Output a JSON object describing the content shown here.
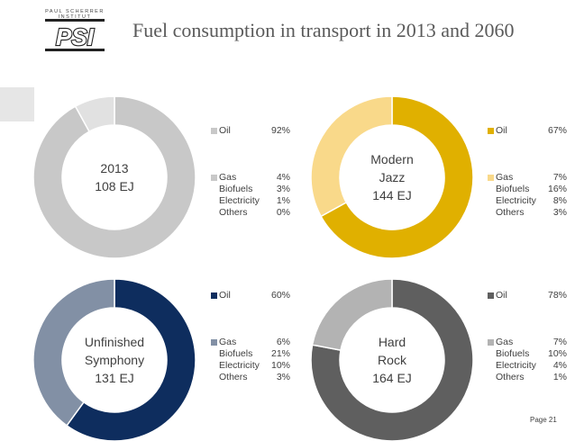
{
  "logo": {
    "org_name": "PAUL SCHERRER INSTITUT",
    "mark": "PSI"
  },
  "title": "Fuel consumption in transport in 2013 and 2060",
  "page_number": "Page 21",
  "chart_data": [
    {
      "type": "pie",
      "donut": true,
      "center_label": [
        "2013",
        "108 EJ"
      ],
      "legend": [
        {
          "name": "Oil",
          "value": "92%",
          "color": "#c8c8c8"
        },
        {
          "name": "Gas",
          "value": "4%",
          "color": "#c8c8c8"
        },
        {
          "name": "Biofuels",
          "value": "3%",
          "color": "#c8c8c8"
        },
        {
          "name": "Electricity",
          "value": "1%",
          "color": "#c8c8c8"
        },
        {
          "name": "Others",
          "value": "0%",
          "color": "#c8c8c8"
        }
      ],
      "slices": [
        {
          "name": "Oil",
          "value": 92,
          "color": "#c8c8c8"
        },
        {
          "name": "Gas+Biofuels+Electricity+Others",
          "value": 8,
          "color": "#e1e1e1"
        }
      ]
    },
    {
      "type": "pie",
      "donut": true,
      "center_label": [
        "Modern",
        "Jazz",
        "144 EJ"
      ],
      "legend": [
        {
          "name": "Oil",
          "value": "67%",
          "color": "#e0b000"
        },
        {
          "name": "Gas",
          "value": "7%",
          "color": "#f9d98a"
        },
        {
          "name": "Biofuels",
          "value": "16%",
          "color": "#f9d98a"
        },
        {
          "name": "Electricity",
          "value": "8%",
          "color": "#f9d98a"
        },
        {
          "name": "Others",
          "value": "3%",
          "color": "#f9d98a"
        }
      ],
      "slices": [
        {
          "name": "Oil",
          "value": 67,
          "color": "#e0b000"
        },
        {
          "name": "Gas+Biofuels+Electricity+Others",
          "value": 33,
          "color": "#f9d98a"
        }
      ]
    },
    {
      "type": "pie",
      "donut": true,
      "center_label": [
        "Unfinished",
        "Symphony",
        "131 EJ"
      ],
      "legend": [
        {
          "name": "Oil",
          "value": "60%",
          "color": "#0e2d5e"
        },
        {
          "name": "Gas",
          "value": "6%",
          "color": "#8290a5"
        },
        {
          "name": "Biofuels",
          "value": "21%",
          "color": "#8290a5"
        },
        {
          "name": "Electricity",
          "value": "10%",
          "color": "#8290a5"
        },
        {
          "name": "Others",
          "value": "3%",
          "color": "#8290a5"
        }
      ],
      "slices": [
        {
          "name": "Oil",
          "value": 60,
          "color": "#0e2d5e"
        },
        {
          "name": "Gas+Biofuels+Electricity+Others",
          "value": 40,
          "color": "#8290a5"
        }
      ]
    },
    {
      "type": "pie",
      "donut": true,
      "center_label": [
        "Hard",
        "Rock",
        "164 EJ"
      ],
      "legend": [
        {
          "name": "Oil",
          "value": "78%",
          "color": "#5f5f5f"
        },
        {
          "name": "Gas",
          "value": "7%",
          "color": "#b3b3b3"
        },
        {
          "name": "Biofuels",
          "value": "10%",
          "color": "#b3b3b3"
        },
        {
          "name": "Electricity",
          "value": "4%",
          "color": "#b3b3b3"
        },
        {
          "name": "Others",
          "value": "1%",
          "color": "#b3b3b3"
        }
      ],
      "slices": [
        {
          "name": "Oil",
          "value": 78,
          "color": "#5f5f5f"
        },
        {
          "name": "Gas+Biofuels+Electricity+Others",
          "value": 22,
          "color": "#b3b3b3"
        }
      ]
    }
  ]
}
